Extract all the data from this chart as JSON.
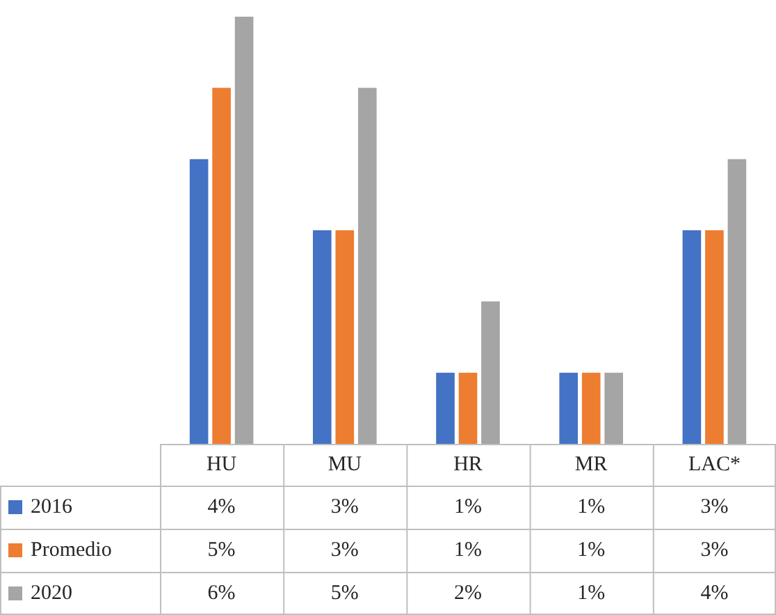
{
  "chart_data": {
    "type": "bar",
    "categories": [
      "HU",
      "MU",
      "HR",
      "MR",
      "LAC*"
    ],
    "legend": "bottom left",
    "series": [
      {
        "name": "2016",
        "color": "#4472c4",
        "values": [
          4,
          3,
          1,
          1,
          3
        ],
        "value_labels": [
          "4%",
          "3%",
          "1%",
          "1%",
          "3%"
        ]
      },
      {
        "name": "Promedio",
        "color": "#ed7d31",
        "values": [
          5,
          3,
          1,
          1,
          3
        ],
        "value_labels": [
          "5%",
          "3%",
          "1%",
          "1%",
          "3%"
        ]
      },
      {
        "name": "2020",
        "color": "#a5a5a5",
        "values": [
          6,
          5,
          2,
          1,
          4
        ],
        "value_labels": [
          "6%",
          "5%",
          "2%",
          "1%",
          "4%"
        ]
      }
    ]
  }
}
